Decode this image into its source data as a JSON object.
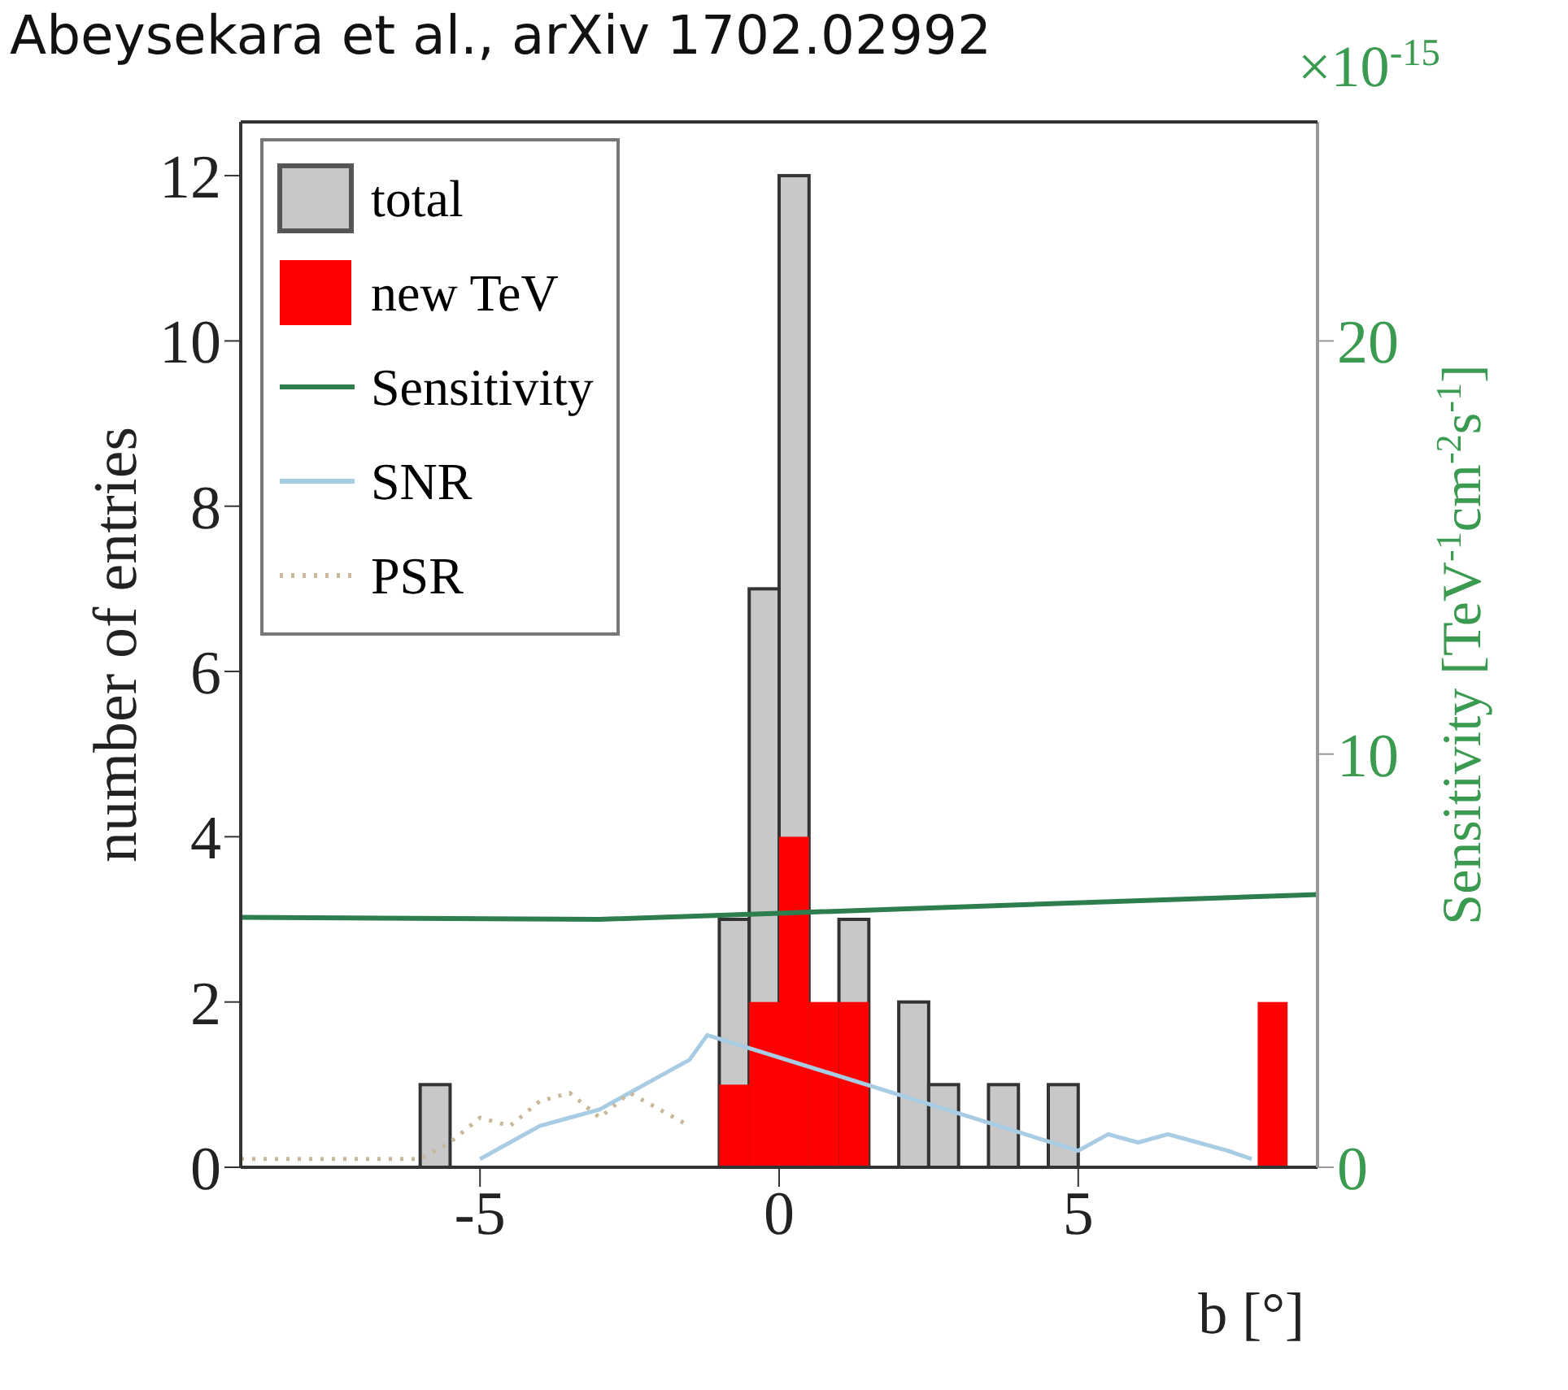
{
  "chart_data": {
    "type": "histogram",
    "xlabel": "b [°]",
    "ylabel": "number of entries",
    "y2label": "Sensitivity [TeV$^{-1}$cm$^{-2}$s$^{-1}$]",
    "annotations": [
      "Abeysekara et al., arXiv 1702.02992",
      "×10$^{-15}$"
    ],
    "bins": [
      -9,
      -8.5,
      -8,
      -7.5,
      -7,
      -6.5,
      -6,
      -5.5,
      -5,
      -4.5,
      -4,
      -3.5,
      -3,
      -2.5,
      -2,
      -1.5,
      -1,
      -0.5,
      0,
      0.5,
      1,
      1.5,
      2,
      2.5,
      3,
      3.5,
      4,
      4.5,
      5,
      5.5,
      6,
      6.5,
      7,
      7.5,
      8,
      8.5,
      9
    ],
    "series": [
      {
        "name": "total",
        "color": "#c8c8c8",
        "values": [
          0,
          0,
          0,
          0,
          0,
          0,
          1,
          0,
          0,
          0,
          0,
          0,
          0,
          0,
          0,
          0,
          3,
          7,
          12,
          null,
          3,
          0,
          2,
          1,
          0,
          1,
          0,
          1,
          0,
          0,
          0,
          0,
          0,
          0,
          null,
          0
        ]
      },
      {
        "name": "new TeV",
        "color": "#ff0000",
        "values": [
          0,
          0,
          0,
          0,
          0,
          0,
          0,
          0,
          0,
          0,
          0,
          0,
          0,
          0,
          0,
          0,
          1,
          2,
          4,
          2,
          2,
          0,
          0,
          0,
          0,
          0,
          0,
          0,
          0,
          0,
          0,
          0,
          0,
          0,
          2,
          0
        ]
      },
      {
        "name": "Sensitivity",
        "type": "line",
        "axis": "y2",
        "color": "#2e7d4f",
        "x": [
          -9,
          -3,
          0,
          9
        ],
        "values": [
          6.05,
          6.0,
          6.15,
          6.6
        ]
      },
      {
        "name": "SNR",
        "type": "line",
        "color": "#a8cce4",
        "x": [
          -5,
          -4.5,
          -4,
          -3.5,
          -3,
          -2.5,
          -2,
          -1.5,
          -1.2,
          5,
          5.5,
          6,
          6.5,
          7,
          7.5,
          7.9
        ],
        "values": [
          0.1,
          0.3,
          0.5,
          0.6,
          0.7,
          0.9,
          1.1,
          1.3,
          1.6,
          0.2,
          0.4,
          0.3,
          0.4,
          0.3,
          0.2,
          0.1
        ]
      },
      {
        "name": "PSR",
        "type": "line",
        "line_style": "dotted",
        "color": "#c9b89a",
        "x": [
          -9,
          -8,
          -7,
          -6,
          -5.5,
          -5,
          -4.5,
          -4,
          -3.5,
          -3,
          -2.5,
          -2,
          -1.5
        ],
        "values": [
          0.1,
          0.1,
          0.1,
          0.1,
          0.3,
          0.6,
          0.5,
          0.8,
          0.9,
          0.6,
          0.9,
          0.7,
          0.5
        ]
      }
    ],
    "xlim": [
      -9,
      9
    ],
    "xticks": [
      -5,
      0,
      5
    ],
    "ylim": [
      0,
      12.65
    ],
    "yticks": [
      0,
      2,
      4,
      6,
      8,
      10,
      12
    ],
    "y2lim": [
      0,
      25.3
    ],
    "y2ticks": [
      0,
      10,
      20
    ],
    "legend": "top left"
  }
}
